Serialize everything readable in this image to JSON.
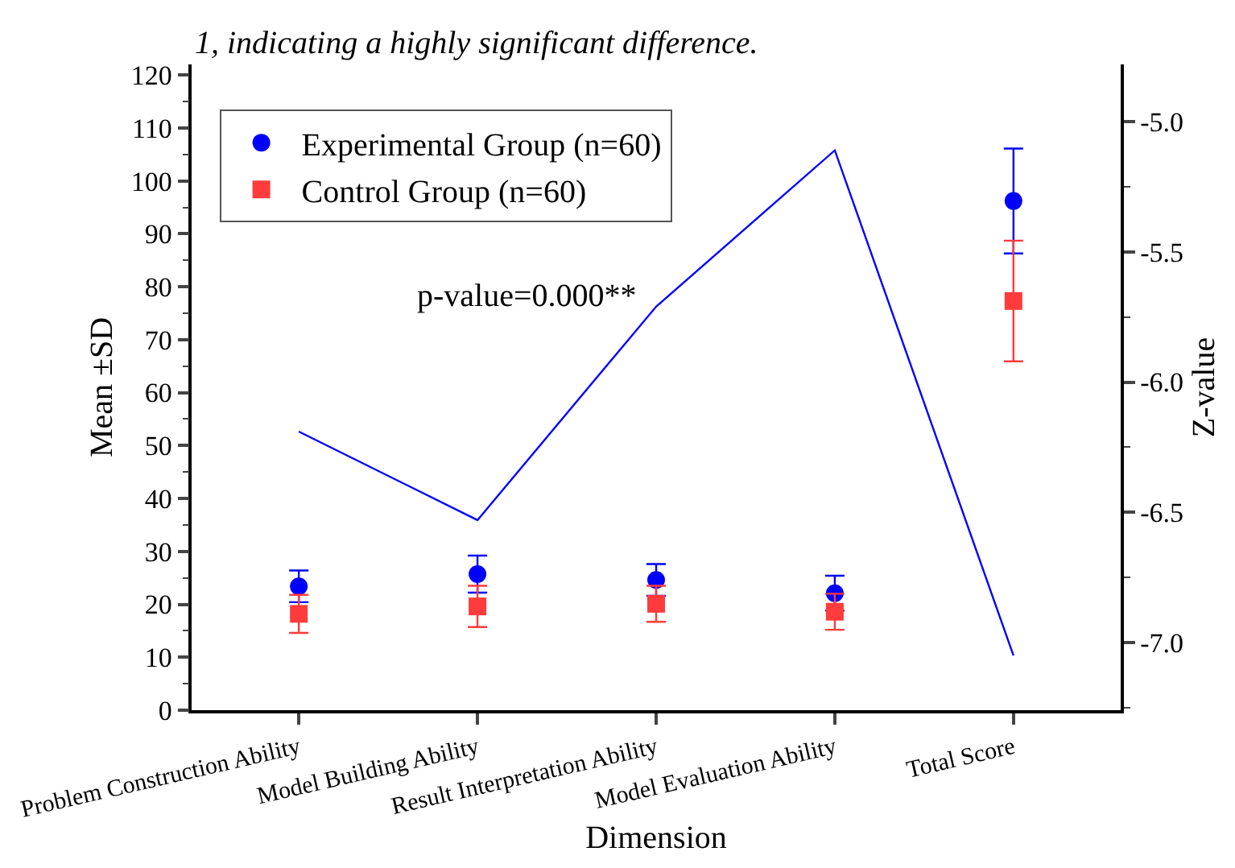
{
  "chart_data": {
    "type": "scatter",
    "categories": [
      "Problem Construction Ability",
      "Model Building Ability",
      "Result Interpretation Ability",
      "Model Evaluation Ability",
      "Total Score"
    ],
    "series": [
      {
        "name": "Experimental Group (n=60)",
        "color": "#0000ff",
        "marker": "circle",
        "values": [
          23.4,
          25.7,
          24.6,
          22.1,
          96.2
        ],
        "errors": [
          3.0,
          3.5,
          3.0,
          3.3,
          9.9
        ]
      },
      {
        "name": "Control Group (n=60)",
        "color": "#ff3b3b",
        "marker": "square",
        "values": [
          18.2,
          19.6,
          20.1,
          18.6,
          77.3
        ],
        "errors": [
          3.6,
          3.9,
          3.4,
          3.4,
          11.4
        ]
      },
      {
        "type": "line",
        "axis": "y2",
        "color": "#0000ff",
        "marker": "none",
        "values": [
          -6.19,
          -6.53,
          -5.71,
          -5.11,
          -7.05
        ]
      }
    ],
    "xlabel": "Dimension",
    "ylabel": "Mean ±SD",
    "y2label": "Z-value",
    "annotations": [
      "1, indicating a highly significant difference.",
      "p-value=0.000**"
    ],
    "ylim": [
      0,
      122
    ],
    "yticks": [
      0,
      10,
      20,
      30,
      40,
      50,
      60,
      70,
      80,
      90,
      100,
      110,
      120
    ],
    "y2lim": [
      -7.26,
      -4.78
    ],
    "y2ticks": [
      {
        "value": -7.0,
        "label": "-7.0"
      },
      {
        "value": -6.5,
        "label": "-6.5"
      },
      {
        "value": -6.0,
        "label": "-6.0"
      },
      {
        "value": -5.5,
        "label": "-5.5"
      },
      {
        "value": -5.0,
        "label": "-5.0"
      }
    ],
    "legend": "top left"
  }
}
